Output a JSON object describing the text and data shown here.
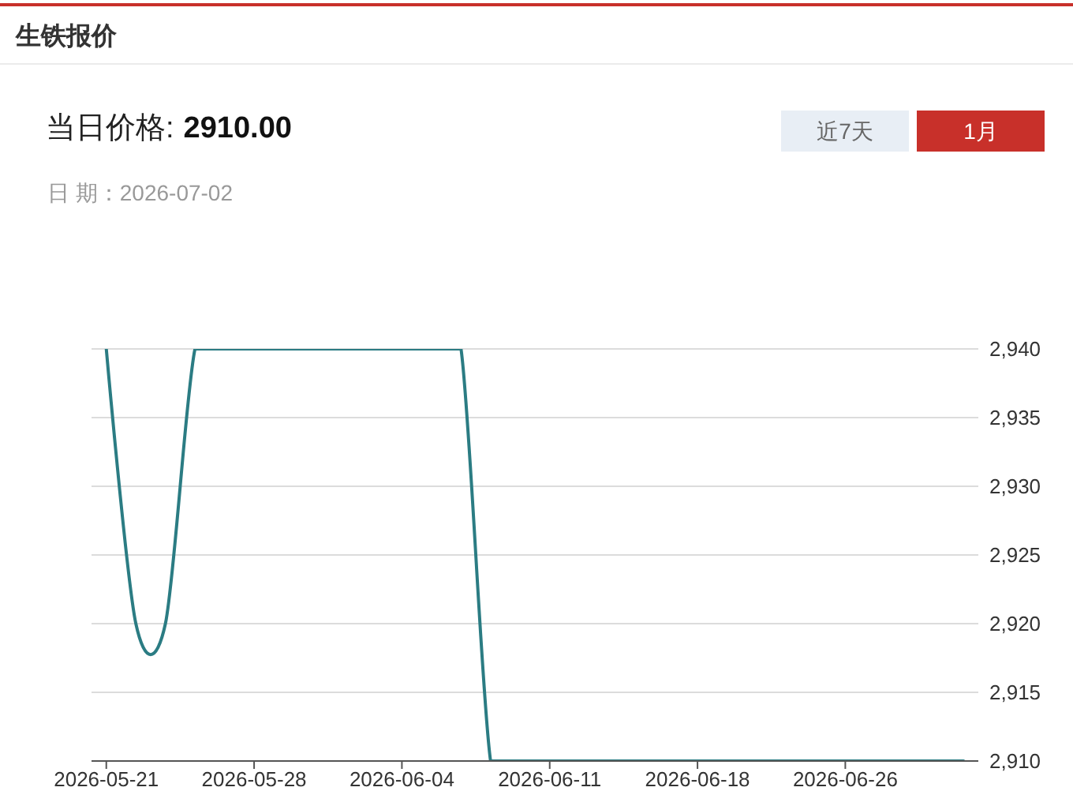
{
  "chart_data": {
    "type": "line",
    "title": "生铁报价",
    "annotations": [
      "当日价格:",
      "2910.00",
      "日 期：2026-07-02",
      "近7天",
      "1月"
    ],
    "categories": [
      "2026-05-21",
      null,
      null,
      null,
      null,
      "2026-05-28",
      null,
      null,
      null,
      null,
      "2026-06-04",
      null,
      null,
      null,
      null,
      "2026-06-11",
      null,
      null,
      null,
      null,
      "2026-06-18",
      null,
      null,
      null,
      null,
      "2026-06-26",
      null,
      null,
      null,
      null
    ],
    "series": [
      {
        "color": "#2b7c83",
        "values": [
          2940,
          2920,
          2920,
          2940,
          2940,
          2940,
          2940,
          2940,
          2940,
          2940,
          2940,
          2940,
          2940,
          2910,
          2910,
          2910,
          2910,
          2910,
          2910,
          2910,
          2910,
          2910,
          2910,
          2910,
          2910,
          2910,
          2910,
          2910,
          2910,
          2910
        ]
      }
    ],
    "ylim": [
      2910,
      2940
    ],
    "yticks": [
      {
        "value": 2910,
        "label": "2,910"
      },
      {
        "value": 2915,
        "label": "2,915"
      },
      {
        "value": 2920,
        "label": "2,920"
      },
      {
        "value": 2925,
        "label": "2,925"
      },
      {
        "value": 2930,
        "label": "2,930"
      },
      {
        "value": 2935,
        "label": "2,935"
      },
      {
        "value": 2940,
        "label": "2,940"
      }
    ],
    "grid": "y"
  }
}
